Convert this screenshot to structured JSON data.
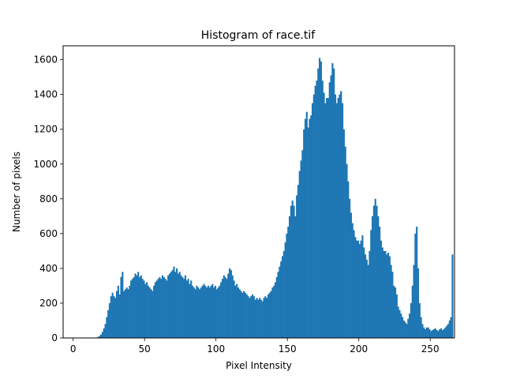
{
  "chart_data": {
    "type": "bar",
    "title": "Histogram of race.tif",
    "xlabel": "Pixel Intensity",
    "ylabel": "Number of pixels",
    "xlim": [
      -7,
      267
    ],
    "ylim": [
      0,
      1680
    ],
    "xticks": [
      0,
      50,
      100,
      150,
      200,
      250
    ],
    "yticks": [
      0,
      200,
      400,
      600,
      800,
      1000,
      1200,
      1400,
      1600
    ],
    "color": "#1f77b4",
    "grid": false,
    "bin_start": 0,
    "bin_width": 1,
    "values": [
      0,
      0,
      0,
      0,
      0,
      0,
      0,
      0,
      0,
      0,
      0,
      0,
      0,
      0,
      0,
      0,
      2,
      6,
      12,
      20,
      35,
      55,
      80,
      120,
      160,
      200,
      240,
      260,
      240,
      230,
      270,
      300,
      250,
      350,
      380,
      270,
      280,
      290,
      280,
      300,
      330,
      340,
      350,
      370,
      360,
      380,
      350,
      360,
      340,
      330,
      310,
      320,
      300,
      290,
      280,
      270,
      300,
      320,
      330,
      340,
      350,
      340,
      360,
      350,
      340,
      330,
      360,
      370,
      380,
      390,
      410,
      380,
      400,
      370,
      380,
      360,
      350,
      340,
      360,
      330,
      340,
      310,
      330,
      300,
      290,
      280,
      300,
      290,
      280,
      290,
      300,
      310,
      300,
      290,
      300,
      290,
      300,
      310,
      290,
      300,
      280,
      290,
      300,
      320,
      340,
      360,
      350,
      340,
      370,
      400,
      390,
      360,
      330,
      300,
      310,
      290,
      280,
      270,
      260,
      270,
      260,
      250,
      240,
      230,
      240,
      250,
      240,
      220,
      230,
      220,
      230,
      220,
      210,
      230,
      240,
      230,
      250,
      260,
      270,
      290,
      300,
      320,
      350,
      380,
      410,
      440,
      470,
      500,
      550,
      600,
      640,
      700,
      760,
      790,
      760,
      700,
      820,
      880,
      960,
      1020,
      1080,
      1200,
      1260,
      1300,
      1210,
      1260,
      1280,
      1350,
      1400,
      1450,
      1480,
      1550,
      1610,
      1590,
      1480,
      1410,
      1350,
      1380,
      1380,
      1470,
      1510,
      1580,
      1550,
      1400,
      1350,
      1380,
      1400,
      1420,
      1350,
      1200,
      1100,
      1000,
      900,
      800,
      720,
      660,
      620,
      580,
      560,
      560,
      540,
      560,
      590,
      520,
      480,
      450,
      420,
      500,
      620,
      700,
      760,
      800,
      760,
      700,
      640,
      560,
      520,
      500,
      500,
      480,
      490,
      470,
      420,
      380,
      300,
      290,
      250,
      180,
      160,
      140,
      120,
      100,
      90,
      80,
      110,
      140,
      200,
      300,
      420,
      600,
      640,
      400,
      200,
      120,
      80,
      60,
      50,
      60,
      60,
      50,
      40,
      45,
      50,
      55,
      45,
      40,
      50,
      55,
      45,
      50,
      60,
      70,
      80,
      100,
      120,
      480
    ]
  }
}
